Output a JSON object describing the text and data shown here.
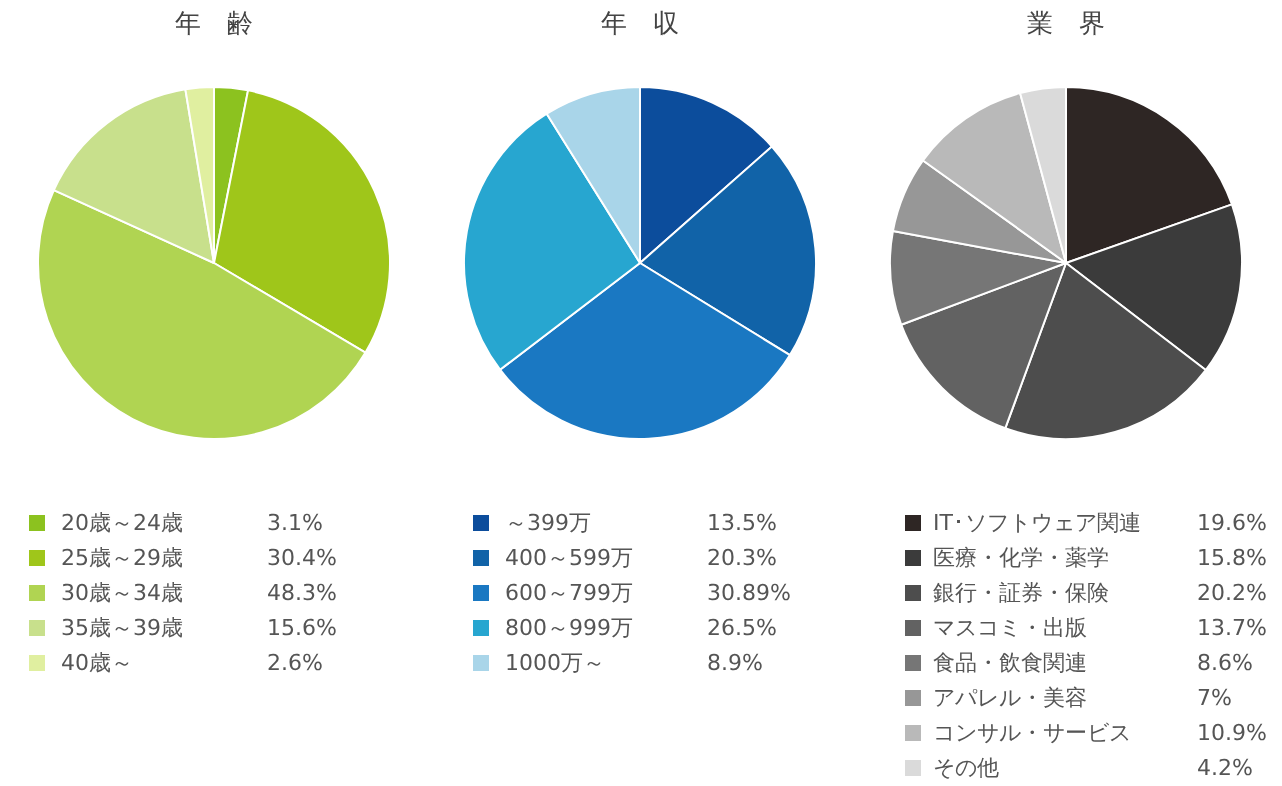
{
  "chart_data": [
    {
      "type": "pie",
      "title": "年　齢",
      "categories": [
        "20歳～24歳",
        "25歳～29歳",
        "30歳～34歳",
        "35歳～39歳",
        "40歳～"
      ],
      "values": [
        3.1,
        30.4,
        48.3,
        15.6,
        2.6
      ],
      "colors": [
        "#8cc21f",
        "#9fc61a",
        "#b0d452",
        "#c8e08c",
        "#e0efa0"
      ],
      "value_labels": [
        "3.1%",
        "30.4%",
        "48.3%",
        "15.6%",
        "2.6%"
      ],
      "legend": "bottom"
    },
    {
      "type": "pie",
      "title": "年　収",
      "categories": [
        "～399万",
        "400～599万",
        "600～799万",
        "800～999万",
        "1000万～"
      ],
      "values": [
        13.5,
        20.3,
        30.89,
        26.5,
        8.9
      ],
      "colors": [
        "#0c4d9c",
        "#1163a8",
        "#1a78c2",
        "#27a6d0",
        "#a9d5e9"
      ],
      "value_labels": [
        "13.5%",
        "20.3%",
        "30.89%",
        "26.5%",
        "8.9%"
      ],
      "legend": "bottom"
    },
    {
      "type": "pie",
      "title": "業　界",
      "categories": [
        "IT･ソフトウェア関連",
        "医療・化学・薬学",
        "銀行・証券・保険",
        "マスコミ・出版",
        "食品・飲食関連",
        "アパレル・美容",
        "コンサル・サービス",
        "その他"
      ],
      "values": [
        19.6,
        15.8,
        20.2,
        13.7,
        8.6,
        7,
        10.9,
        4.2
      ],
      "colors": [
        "#2e2624",
        "#3b3b3b",
        "#4d4d4d",
        "#626262",
        "#767676",
        "#979797",
        "#b9b9b9",
        "#dadada"
      ],
      "value_labels": [
        "19.6%",
        "15.8%",
        "20.2%",
        "13.7%",
        "8.6%",
        "7%",
        "10.9%",
        "4.2%"
      ],
      "legend": "bottom"
    }
  ]
}
